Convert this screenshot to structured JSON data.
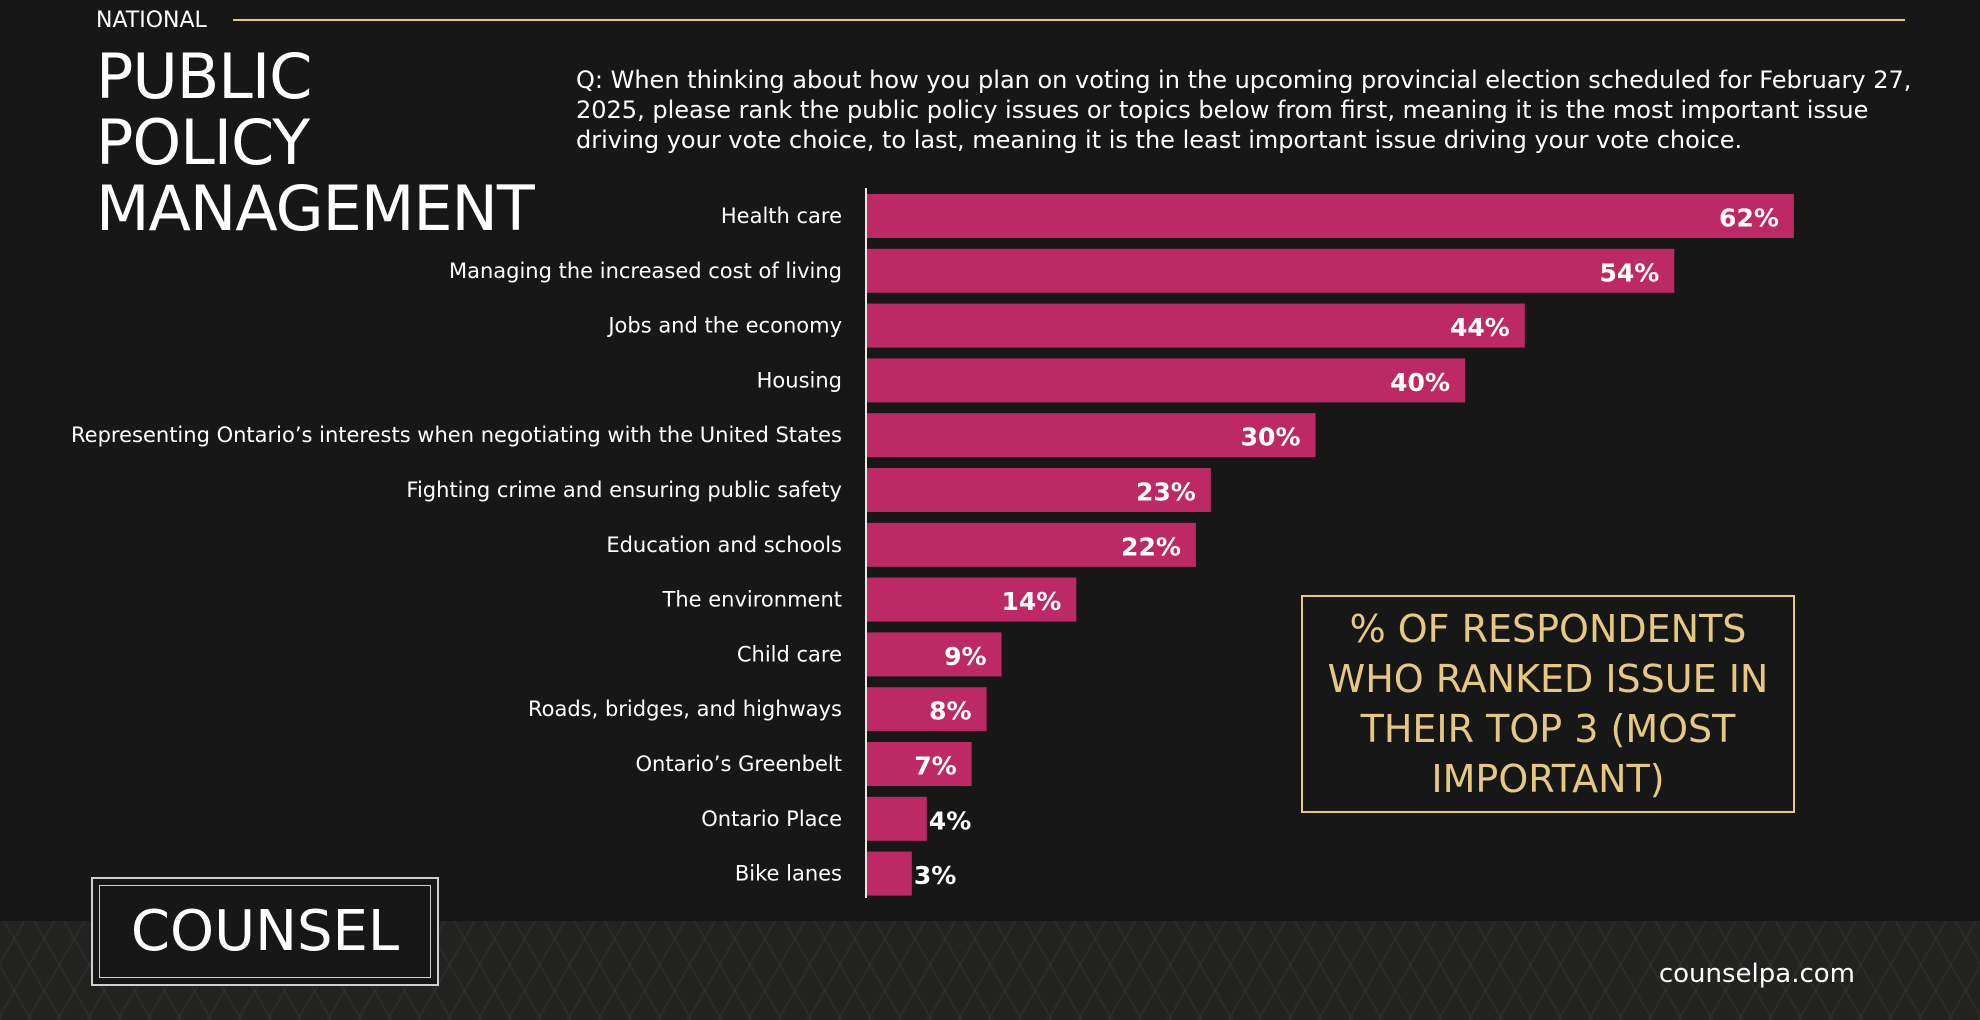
{
  "header": {
    "eyebrow": "NATIONAL",
    "title": "PUBLIC POLICY MANAGEMENT",
    "question": "Q: When thinking about how you plan on voting in the upcoming provincial election scheduled for February 27, 2025, please rank the public policy issues or topics below from first, meaning it is the most important issue driving your vote choice, to last, meaning it is the least important issue driving your vote choice."
  },
  "callout": {
    "text": "% OF RESPONDENTS WHO RANKED ISSUE IN THEIR TOP 3 (MOST IMPORTANT)"
  },
  "footer": {
    "logo": "COUNSEL",
    "website": "counselpa.com"
  },
  "colors": {
    "bar": "#bd2965",
    "accent_gold": "#e6c980",
    "background": "#171717"
  },
  "chart_data": {
    "type": "bar",
    "orientation": "horizontal",
    "categories": [
      "Health care",
      "Managing the increased cost of living",
      "Jobs and the economy",
      "Housing",
      "Representing Ontario’s interests when negotiating with the United States",
      "Fighting crime and ensuring public safety",
      "Education and schools",
      "The environment",
      "Child care",
      "Roads, bridges, and highways",
      "Ontario’s Greenbelt",
      "Ontario Place",
      "Bike lanes"
    ],
    "values": [
      62,
      54,
      44,
      40,
      30,
      23,
      22,
      14,
      9,
      8,
      7,
      4,
      3
    ],
    "value_labels": [
      "62%",
      "54%",
      "44%",
      "40%",
      "30%",
      "23%",
      "22%",
      "14%",
      "9%",
      "8%",
      "7%",
      "4%",
      "3%"
    ],
    "unit": "%",
    "title": "",
    "xlabel": "",
    "ylabel": "",
    "grid": false,
    "legend": "none"
  }
}
